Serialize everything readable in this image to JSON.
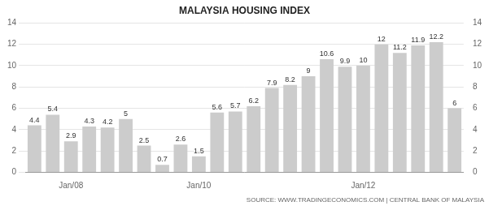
{
  "chart_data": {
    "type": "bar",
    "title": "MALAYSIA HOUSING INDEX",
    "categories": [
      null,
      null,
      "Jan/08",
      null,
      null,
      null,
      null,
      null,
      null,
      "Jan/10",
      null,
      null,
      null,
      null,
      null,
      null,
      null,
      null,
      "Jan/12",
      null,
      null,
      null,
      null,
      null
    ],
    "values": [
      4.4,
      5.4,
      2.9,
      4.3,
      4.2,
      5.0,
      2.5,
      0.7,
      2.6,
      1.5,
      5.6,
      5.7,
      6.2,
      7.9,
      8.2,
      9.0,
      10.6,
      9.9,
      10.0,
      12.0,
      11.2,
      11.9,
      12.2,
      6.0
    ],
    "color": "#cccccc",
    "ylim": [
      0,
      14
    ],
    "yticks": [
      0,
      2,
      4,
      6,
      8,
      10,
      12,
      14
    ],
    "y2lim": [
      0,
      14
    ],
    "y2ticks": [
      0,
      2,
      4,
      6,
      8,
      10,
      12,
      14
    ],
    "grid": true,
    "data_labels": true,
    "source": "SOURCE: WWW.TRADINGECONOMICS.COM | CENTRAL BANK OF MALAYSIA"
  }
}
